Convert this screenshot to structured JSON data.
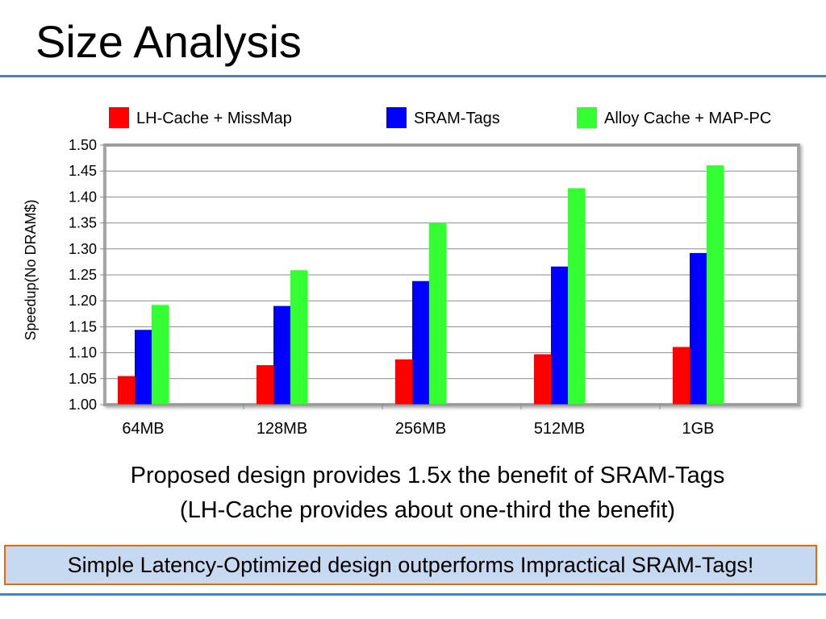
{
  "slide": {
    "title": "Size Analysis",
    "caption_line1": "Proposed design provides 1.5x the benefit of SRAM-Tags",
    "caption_line2": "(LH-Cache provides about one-third the benefit)",
    "callout": "Simple Latency-Optimized design outperforms Impractical SRAM-Tags!"
  },
  "chart_data": {
    "type": "bar",
    "title": "",
    "xlabel": "",
    "ylabel": "Speedup(No DRAM$)",
    "categories": [
      "64MB",
      "128MB",
      "256MB",
      "512MB",
      "1GB"
    ],
    "ylim": [
      1.0,
      1.5
    ],
    "yticks": [
      "1.00",
      "1.05",
      "1.10",
      "1.15",
      "1.20",
      "1.25",
      "1.30",
      "1.35",
      "1.40",
      "1.45",
      "1.50"
    ],
    "grid": true,
    "legend_position": "top",
    "series": [
      {
        "name": "LH-Cache + MissMap",
        "color": "#ff0000",
        "values": [
          1.055,
          1.076,
          1.087,
          1.097,
          1.111
        ]
      },
      {
        "name": "SRAM-Tags",
        "color": "#0000ff",
        "values": [
          1.144,
          1.19,
          1.238,
          1.266,
          1.292
        ]
      },
      {
        "name": "Alloy Cache + MAP-PC",
        "color": "#33ff33",
        "values": [
          1.192,
          1.259,
          1.35,
          1.417,
          1.461
        ]
      }
    ]
  }
}
